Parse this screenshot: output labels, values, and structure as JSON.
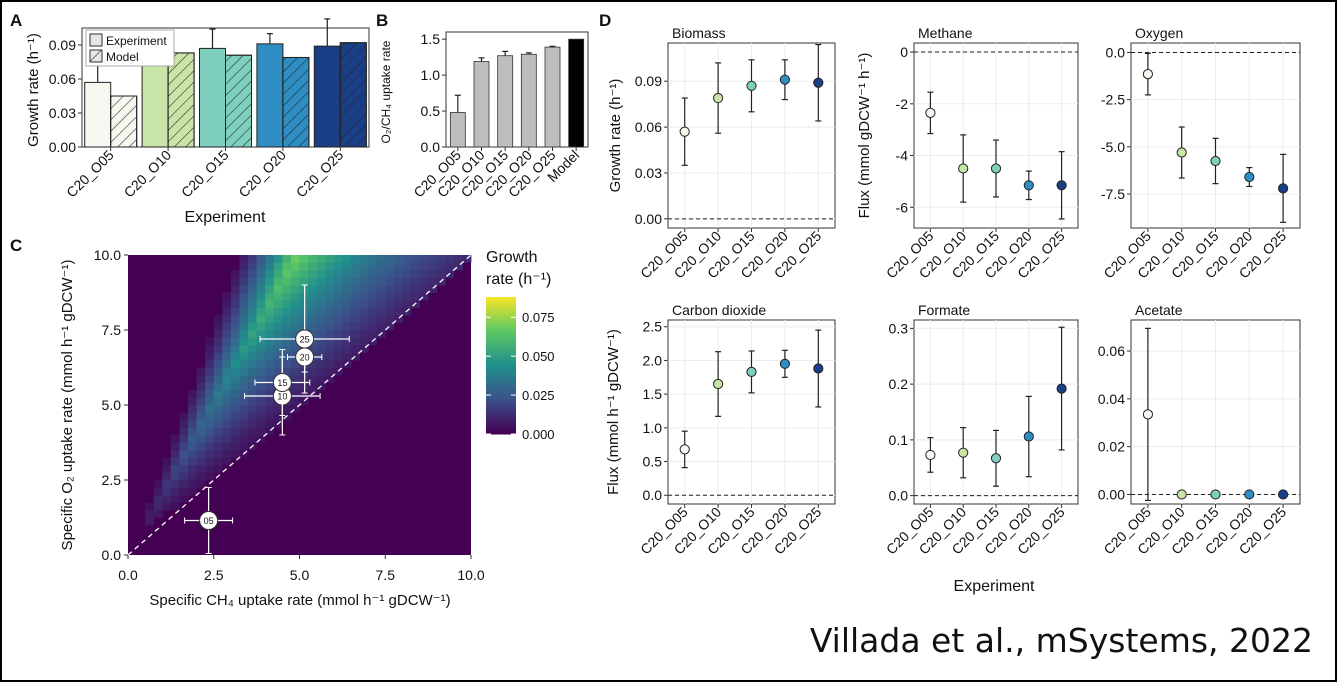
{
  "citation": "Villada et al., mSystems, 2022",
  "palette": {
    "C20_O05": "#f7f7ef",
    "C20_O10": "#c9e4a7",
    "C20_O15": "#7fcfbf",
    "C20_O20": "#2e8ec4",
    "C20_O25": "#1b3f86",
    "model_bar": "#000000",
    "grey_bar": "#bdbdbd"
  },
  "chart_data": [
    {
      "panel": "A",
      "type": "bar",
      "title": "",
      "xlabel": "Experiment",
      "ylabel": "Growth rate (h⁻¹)",
      "ylim": [
        0,
        0.105
      ],
      "yticks": [
        0.0,
        0.03,
        0.06,
        0.09
      ],
      "ytick_labels": [
        "0.00",
        "0.03",
        "0.06",
        "0.09"
      ],
      "categories": [
        "C20_O05",
        "C20_O10",
        "C20_O15",
        "C20_O20",
        "C20_O25"
      ],
      "legend": [
        "Experiment",
        "Model"
      ],
      "series": [
        {
          "name": "Experiment",
          "values": [
            0.057,
            0.079,
            0.087,
            0.091,
            0.089
          ],
          "errors": [
            0.022,
            0.022,
            0.017,
            0.009,
            0.024
          ]
        },
        {
          "name": "Model",
          "values": [
            0.045,
            0.083,
            0.081,
            0.079,
            0.092
          ]
        }
      ]
    },
    {
      "panel": "B",
      "type": "bar",
      "ylabel": "O₂/CH₄ uptake rate",
      "ylim": [
        0,
        1.6
      ],
      "yticks": [
        0.0,
        0.5,
        1.0,
        1.5
      ],
      "ytick_labels": [
        "0.0",
        "0.5",
        "1.0",
        "1.5"
      ],
      "categories": [
        "C20_O05",
        "C20_O10",
        "C20_O15",
        "C20_O20",
        "C20_O25",
        "Model"
      ],
      "values": [
        0.48,
        1.19,
        1.27,
        1.29,
        1.39,
        1.5
      ],
      "errors": [
        0.24,
        0.05,
        0.06,
        0.02,
        0.01,
        0
      ]
    },
    {
      "panel": "C",
      "type": "heatmap",
      "xlabel": "Specific CH₄ uptake rate (mmol h⁻¹ gDCW⁻¹)",
      "ylabel": "Specific O₂ uptake rate (mmol h⁻¹ gDCW⁻¹)",
      "xlim": [
        0,
        10
      ],
      "ylim": [
        0,
        10
      ],
      "xticks": [
        0,
        2.5,
        5,
        7.5,
        10
      ],
      "xtick_labels": [
        "0.0",
        "2.5",
        "5.0",
        "7.5",
        "10.0"
      ],
      "ytick_labels": [
        "0.0",
        "2.5",
        "5.0",
        "7.5",
        "10.0"
      ],
      "legend_title": "Growth\nrate (h⁻¹)",
      "colorbar_ticks": [
        0.0,
        0.025,
        0.05,
        0.075
      ],
      "colorbar_labels": [
        "0.000",
        "0.025",
        "0.050",
        "0.075"
      ],
      "colorbar_max": 0.088,
      "points": [
        {
          "label": "05",
          "x": 2.35,
          "y": 1.15,
          "xerr": 0.7,
          "yerr": 1.1
        },
        {
          "label": "10",
          "x": 4.5,
          "y": 5.3,
          "xerr": 1.1,
          "yerr": 1.3
        },
        {
          "label": "15",
          "x": 4.5,
          "y": 5.75,
          "xerr": 0.8,
          "yerr": 1.1
        },
        {
          "label": "20",
          "x": 5.15,
          "y": 6.6,
          "xerr": 0.5,
          "yerr": 0.5
        },
        {
          "label": "25",
          "x": 5.15,
          "y": 7.2,
          "xerr": 1.3,
          "yerr": 1.8
        }
      ]
    },
    {
      "panel": "D",
      "type": "scatter",
      "xlabel": "Experiment",
      "categories": [
        "C20_O05",
        "C20_O10",
        "C20_O15",
        "C20_O20",
        "C20_O25"
      ],
      "subplots": [
        {
          "title": "Biomass",
          "ylabel": "Growth rate (h⁻¹)",
          "ylim": [
            -0.006,
            0.115
          ],
          "yticks": [
            0,
            0.03,
            0.06,
            0.09
          ],
          "ytick_labels": [
            "0.00",
            "0.03",
            "0.06",
            "0.09"
          ],
          "values": [
            0.057,
            0.079,
            0.087,
            0.091,
            0.089
          ],
          "errors": [
            0.022,
            0.023,
            0.017,
            0.013,
            0.025
          ]
        },
        {
          "title": "Methane",
          "ylabel": "Flux (mmol gDCW⁻¹ h⁻¹)",
          "ylim": [
            -6.8,
            0.35
          ],
          "yticks": [
            -6,
            -4,
            -2,
            0
          ],
          "ytick_labels": [
            "-6",
            "-4",
            "-2",
            "0"
          ],
          "values": [
            -2.35,
            -4.5,
            -4.5,
            -5.15,
            -5.15
          ],
          "errors": [
            0.8,
            1.3,
            1.1,
            0.55,
            1.3
          ]
        },
        {
          "title": "Oxygen",
          "ylabel": "",
          "ylim": [
            -9.3,
            0.5
          ],
          "yticks": [
            -7.5,
            -5.0,
            -2.5,
            0.0
          ],
          "ytick_labels": [
            "-7.5",
            "-5.0",
            "-2.5",
            "0.0"
          ],
          "values": [
            -1.15,
            -5.3,
            -5.75,
            -6.6,
            -7.2
          ],
          "errors": [
            1.1,
            1.35,
            1.2,
            0.5,
            1.8
          ]
        },
        {
          "title": "Carbon dioxide",
          "ylabel": "Flux (mmol h⁻¹ gDCW⁻¹)",
          "ylim": [
            -0.13,
            2.6
          ],
          "yticks": [
            0,
            0.5,
            1.0,
            1.5,
            2.0,
            2.5
          ],
          "ytick_labels": [
            "0.0",
            "0.5",
            "1.0",
            "1.5",
            "2.0",
            "2.5"
          ],
          "values": [
            0.68,
            1.65,
            1.83,
            1.95,
            1.88
          ],
          "errors": [
            0.27,
            0.48,
            0.31,
            0.2,
            0.57
          ]
        },
        {
          "title": "Formate",
          "ylabel": "",
          "ylim": [
            -0.015,
            0.315
          ],
          "yticks": [
            0,
            0.1,
            0.2,
            0.3
          ],
          "ytick_labels": [
            "0.0",
            "0.1",
            "0.2",
            "0.3"
          ],
          "values": [
            0.073,
            0.077,
            0.067,
            0.106,
            0.192
          ],
          "errors": [
            0.031,
            0.045,
            0.05,
            0.072,
            0.11
          ]
        },
        {
          "title": "Acetate",
          "ylabel": "",
          "ylim": [
            -0.004,
            0.073
          ],
          "yticks": [
            0,
            0.02,
            0.04,
            0.06
          ],
          "ytick_labels": [
            "0.00",
            "0.02",
            "0.04",
            "0.06"
          ],
          "values": [
            0.0335,
            0.0,
            0.0,
            0.0,
            0.0
          ],
          "errors": [
            0.036,
            0,
            0,
            0,
            0
          ]
        }
      ]
    }
  ]
}
